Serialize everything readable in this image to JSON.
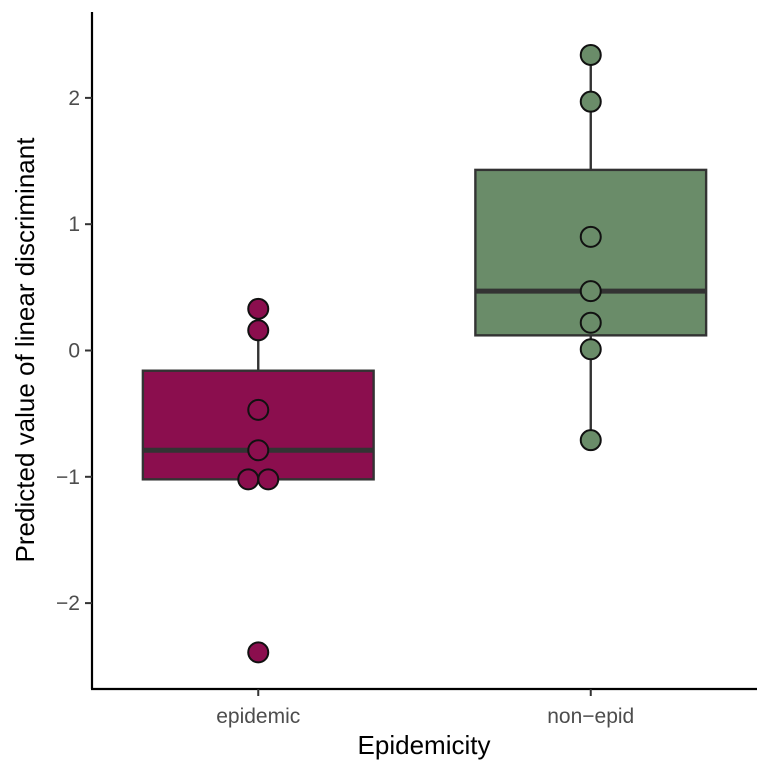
{
  "chart_data": {
    "type": "box",
    "title": "",
    "xlabel": "Epidemicity",
    "ylabel": "Predicted value of linear discriminant",
    "categories": [
      "epidemic",
      "non−epid"
    ],
    "ylim": [
      -2.68,
      2.68
    ],
    "yticks": [
      -2,
      -1,
      0,
      1,
      2
    ],
    "ytick_labels": [
      "−2",
      "−1",
      "0",
      "1",
      "2"
    ],
    "grid": false,
    "legend": "none",
    "boxes": [
      {
        "category": "epidemic",
        "color": "#8b0e4e",
        "q1": -1.02,
        "median": -0.79,
        "q3": -0.16,
        "whisker_low": -1.02,
        "whisker_high": 0.33,
        "points": [
          0.33,
          0.16,
          -0.47,
          -0.79,
          -1.02,
          -1.02,
          -2.39
        ]
      },
      {
        "category": "non−epid",
        "color": "#6a8c69",
        "q1": 0.12,
        "median": 0.47,
        "q3": 1.43,
        "whisker_low": -0.71,
        "whisker_high": 2.34,
        "points": [
          2.34,
          1.97,
          0.9,
          0.47,
          0.22,
          0.01,
          -0.71
        ]
      }
    ]
  }
}
